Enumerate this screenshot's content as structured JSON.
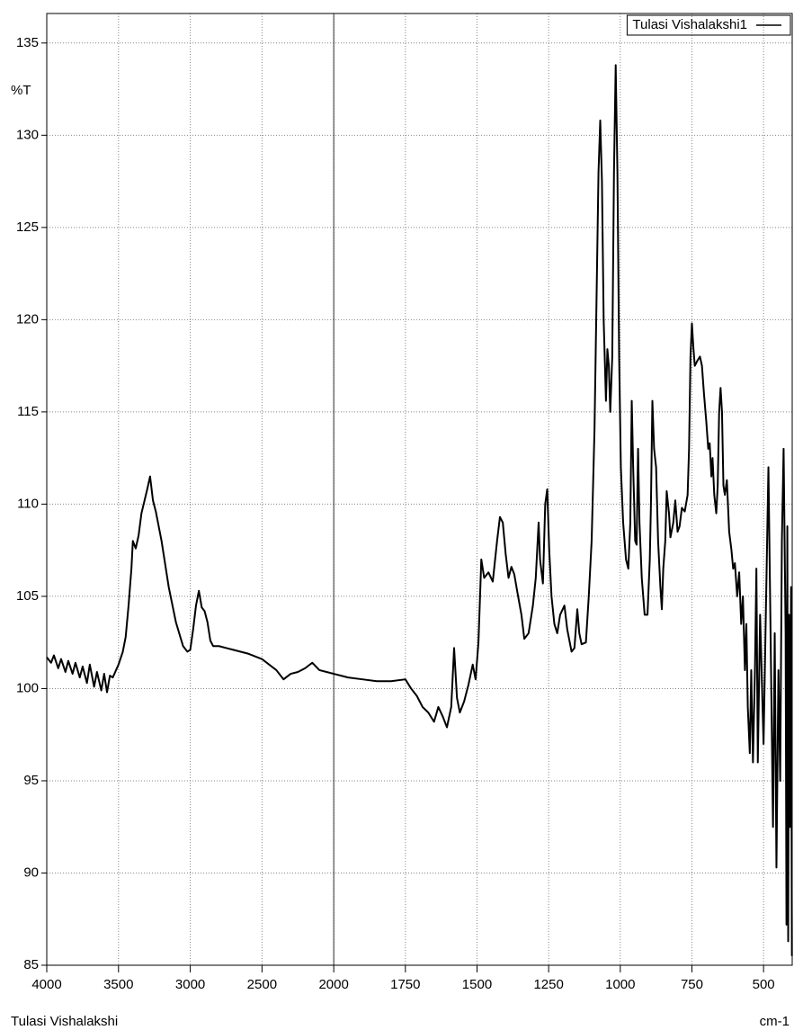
{
  "chart_data": {
    "type": "line",
    "y_label": "%T",
    "x_label": "cm-1",
    "sample_name": "Tulasi Vishalakshi",
    "x": [
      4000,
      3970,
      3950,
      3920,
      3900,
      3870,
      3850,
      3820,
      3800,
      3770,
      3750,
      3720,
      3700,
      3670,
      3650,
      3620,
      3600,
      3580,
      3560,
      3540,
      3500,
      3470,
      3450,
      3430,
      3410,
      3400,
      3380,
      3360,
      3340,
      3300,
      3280,
      3260,
      3240,
      3200,
      3150,
      3100,
      3050,
      3020,
      3000,
      2980,
      2960,
      2940,
      2920,
      2900,
      2880,
      2860,
      2840,
      2800,
      2700,
      2600,
      2500,
      2450,
      2400,
      2350,
      2300,
      2250,
      2200,
      2150,
      2100,
      2050,
      2000,
      1950,
      1900,
      1850,
      1800,
      1750,
      1730,
      1710,
      1690,
      1670,
      1650,
      1635,
      1620,
      1605,
      1590,
      1580,
      1570,
      1560,
      1545,
      1530,
      1515,
      1505,
      1495,
      1485,
      1475,
      1460,
      1445,
      1430,
      1420,
      1410,
      1400,
      1390,
      1380,
      1370,
      1360,
      1345,
      1335,
      1320,
      1305,
      1295,
      1285,
      1280,
      1270,
      1262,
      1255,
      1248,
      1240,
      1230,
      1220,
      1210,
      1195,
      1185,
      1170,
      1160,
      1150,
      1143,
      1135,
      1120,
      1110,
      1100,
      1090,
      1082,
      1076,
      1070,
      1064,
      1058,
      1050,
      1045,
      1040,
      1035,
      1028,
      1022,
      1016,
      1010,
      1004,
      998,
      990,
      980,
      972,
      965,
      960,
      955,
      948,
      943,
      938,
      933,
      925,
      915,
      905,
      897,
      893,
      888,
      882,
      875,
      868,
      860,
      855,
      850,
      843,
      838,
      830,
      825,
      815,
      808,
      800,
      793,
      785,
      775,
      765,
      760,
      755,
      750,
      745,
      740,
      730,
      722,
      715,
      708,
      700,
      693,
      688,
      682,
      678,
      672,
      665,
      660,
      655,
      650,
      645,
      640,
      635,
      628,
      620,
      612,
      606,
      600,
      592,
      585,
      578,
      572,
      565,
      560,
      555,
      548,
      543,
      537,
      530,
      525,
      520,
      512,
      500,
      483,
      473,
      467,
      461,
      455,
      448,
      442,
      436,
      430,
      423,
      420,
      417,
      414,
      411,
      408,
      404,
      401
    ],
    "series": [
      {
        "name": "Tulasi Vishalakshi1",
        "color": "#000000",
        "values": [
          101.7,
          101.4,
          101.8,
          101.1,
          101.6,
          100.9,
          101.5,
          100.8,
          101.4,
          100.6,
          101.2,
          100.3,
          101.3,
          100.1,
          100.9,
          99.9,
          100.8,
          99.8,
          100.7,
          100.6,
          101.3,
          102.0,
          102.8,
          104.5,
          106.5,
          108.0,
          107.6,
          108.3,
          109.5,
          110.8,
          111.5,
          110.2,
          109.6,
          108.0,
          105.5,
          103.6,
          102.3,
          102.0,
          102.1,
          103.2,
          104.5,
          105.3,
          104.4,
          104.2,
          103.6,
          102.6,
          102.3,
          102.3,
          102.1,
          101.9,
          101.6,
          101.3,
          101.0,
          100.5,
          100.8,
          100.9,
          101.1,
          101.4,
          101.0,
          100.9,
          100.8,
          100.6,
          100.5,
          100.4,
          100.4,
          100.5,
          100.0,
          99.6,
          99.0,
          98.7,
          98.2,
          99.0,
          98.5,
          97.9,
          99.0,
          102.2,
          99.5,
          98.7,
          99.3,
          100.2,
          101.3,
          100.5,
          102.5,
          107.0,
          106.0,
          106.3,
          105.8,
          108.0,
          109.3,
          109.0,
          107.3,
          106.0,
          106.6,
          106.2,
          105.3,
          104.0,
          102.7,
          103.0,
          104.5,
          106.0,
          109.0,
          107.0,
          105.7,
          110.0,
          110.8,
          107.5,
          105.0,
          103.5,
          103.0,
          104.0,
          104.5,
          103.2,
          102.0,
          102.2,
          104.3,
          103.0,
          102.4,
          102.5,
          105.0,
          108.0,
          114.0,
          122.0,
          128.0,
          130.8,
          127.5,
          120.0,
          115.6,
          118.4,
          117.5,
          115.0,
          118.0,
          128.0,
          133.8,
          128.0,
          118.0,
          112.0,
          109.0,
          107.0,
          106.5,
          109.0,
          115.6,
          112.0,
          108.0,
          107.8,
          113.0,
          109.0,
          106.0,
          104.0,
          104.0,
          107.0,
          110.0,
          115.6,
          113.0,
          112.0,
          108.0,
          105.5,
          104.3,
          106.5,
          108.0,
          110.7,
          109.5,
          108.2,
          109.0,
          110.2,
          108.5,
          108.8,
          109.8,
          109.6,
          110.5,
          113.0,
          118.0,
          119.8,
          118.5,
          117.5,
          117.8,
          118.0,
          117.5,
          116.0,
          114.5,
          113.0,
          113.3,
          111.5,
          112.5,
          110.5,
          109.5,
          111.0,
          115.0,
          116.3,
          115.0,
          111.0,
          110.5,
          111.3,
          108.5,
          107.5,
          106.5,
          106.8,
          105.0,
          106.3,
          103.5,
          105.0,
          101.0,
          103.5,
          99.0,
          96.5,
          101.0,
          96.0,
          101.0,
          106.5,
          96.0,
          104.0,
          97.0,
          112.0,
          100.0,
          92.5,
          103.0,
          90.3,
          101.0,
          95.0,
          108.0,
          113.0,
          103.0,
          87.2,
          108.8,
          86.3,
          104.0,
          92.5,
          105.5,
          85.5
        ]
      }
    ],
    "xlim": [
      4000,
      400
    ],
    "x_break": 2000,
    "xticks": [
      4000,
      3500,
      3000,
      2500,
      2000,
      1750,
      1500,
      1250,
      1000,
      750,
      500
    ],
    "ylim": [
      85,
      136.6
    ],
    "yticks": [
      85,
      90,
      95,
      100,
      105,
      110,
      115,
      120,
      125,
      130,
      135
    ],
    "grid": true,
    "legend": "top-right"
  }
}
